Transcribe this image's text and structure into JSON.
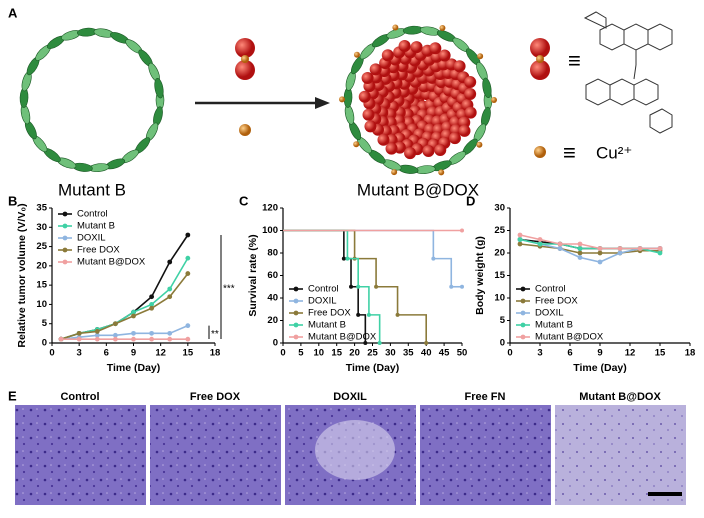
{
  "panel_a": {
    "label": "A",
    "left_caption": "Mutant B",
    "right_caption": "Mutant B@DOX",
    "equiv_drug": "≡",
    "equiv_ion": "≡",
    "ion": "Cu²⁺"
  },
  "chart_data": [
    {
      "type": "line",
      "panel": "B",
      "x_label": "Time (Day)",
      "y_label": "Relative tumor volume (V/V₀)",
      "xlim": [
        0,
        18
      ],
      "xticks": [
        0,
        3,
        6,
        9,
        12,
        15,
        18
      ],
      "ylim": [
        0,
        35
      ],
      "yticks": [
        0,
        5,
        10,
        15,
        20,
        25,
        30,
        35
      ],
      "legend": "upper left",
      "annotations": [
        "***",
        "**"
      ],
      "x": [
        1,
        3,
        5,
        7,
        9,
        11,
        13,
        15
      ],
      "series": [
        {
          "name": "Control",
          "color": "#111111",
          "values": [
            1,
            2.5,
            3.5,
            5,
            8,
            12,
            21,
            28
          ]
        },
        {
          "name": "Mutant B",
          "color": "#3fd1a5",
          "values": [
            1,
            2.5,
            3.5,
            5,
            8,
            10,
            14,
            22
          ]
        },
        {
          "name": "DOXIL",
          "color": "#8fb5e0",
          "values": [
            1,
            1.5,
            2,
            2,
            2.5,
            2.5,
            2.5,
            4.5
          ]
        },
        {
          "name": "Free DOX",
          "color": "#8b7a3a",
          "values": [
            1,
            2.5,
            3,
            5,
            7,
            9,
            12,
            18
          ]
        },
        {
          "name": "Mutant B@DOX",
          "color": "#f0a0a0",
          "values": [
            1,
            1,
            1,
            1,
            1,
            1,
            1,
            1
          ]
        }
      ]
    },
    {
      "type": "step",
      "panel": "C",
      "x_label": "Time (Day)",
      "y_label": "Survival rate (%)",
      "xlim": [
        0,
        50
      ],
      "xticks": [
        0,
        5,
        10,
        15,
        20,
        25,
        30,
        35,
        40,
        45,
        50
      ],
      "ylim": [
        0,
        120
      ],
      "yticks": [
        0,
        20,
        40,
        60,
        80,
        100,
        120
      ],
      "legend": "lower left",
      "series": [
        {
          "name": "Control",
          "color": "#111111",
          "x": [
            0,
            17,
            19,
            21,
            23
          ],
          "values": [
            100,
            75,
            50,
            25,
            0
          ]
        },
        {
          "name": "DOXIL",
          "color": "#8fb5e0",
          "x": [
            0,
            42,
            47,
            50
          ],
          "values": [
            100,
            75,
            50,
            50
          ]
        },
        {
          "name": "Free DOX",
          "color": "#8b7a3a",
          "x": [
            0,
            20,
            26,
            32,
            40
          ],
          "values": [
            100,
            75,
            50,
            25,
            0
          ]
        },
        {
          "name": "Mutant B",
          "color": "#3fd1a5",
          "x": [
            0,
            18,
            21,
            24,
            27
          ],
          "values": [
            100,
            75,
            50,
            25,
            0
          ]
        },
        {
          "name": "Mutant B@DOX",
          "color": "#f0a0a0",
          "x": [
            0,
            50
          ],
          "values": [
            100,
            100
          ]
        }
      ]
    },
    {
      "type": "line",
      "panel": "D",
      "x_label": "Time (Day)",
      "y_label": "Body weight (g)",
      "xlim": [
        0,
        18
      ],
      "xticks": [
        0,
        3,
        6,
        9,
        12,
        15,
        18
      ],
      "ylim": [
        0,
        30
      ],
      "yticks": [
        0,
        5,
        10,
        15,
        20,
        25,
        30
      ],
      "legend": "lower left",
      "x": [
        1,
        3,
        5,
        7,
        9,
        11,
        13,
        15
      ],
      "series": [
        {
          "name": "Control",
          "color": "#111111",
          "values": [
            23,
            22.5,
            22,
            21,
            21,
            21,
            21,
            21
          ]
        },
        {
          "name": "Free DOX",
          "color": "#8b7a3a",
          "values": [
            22,
            21.5,
            21,
            20,
            20,
            20,
            20.5,
            20.5
          ]
        },
        {
          "name": "DOXIL",
          "color": "#8fb5e0",
          "values": [
            23,
            22,
            21,
            19,
            18,
            20,
            21,
            21
          ]
        },
        {
          "name": "Mutant B",
          "color": "#3fd1a5",
          "values": [
            23,
            22,
            22,
            21,
            21,
            21,
            21,
            20
          ]
        },
        {
          "name": "Mutant B@DOX",
          "color": "#f0a0a0",
          "values": [
            24,
            23,
            22,
            22,
            21,
            21,
            21,
            21
          ]
        }
      ]
    }
  ],
  "panel_e": {
    "label": "E",
    "images": [
      "Control",
      "Free DOX",
      "DOXIL",
      "Free FN",
      "Mutant B@DOX"
    ]
  }
}
